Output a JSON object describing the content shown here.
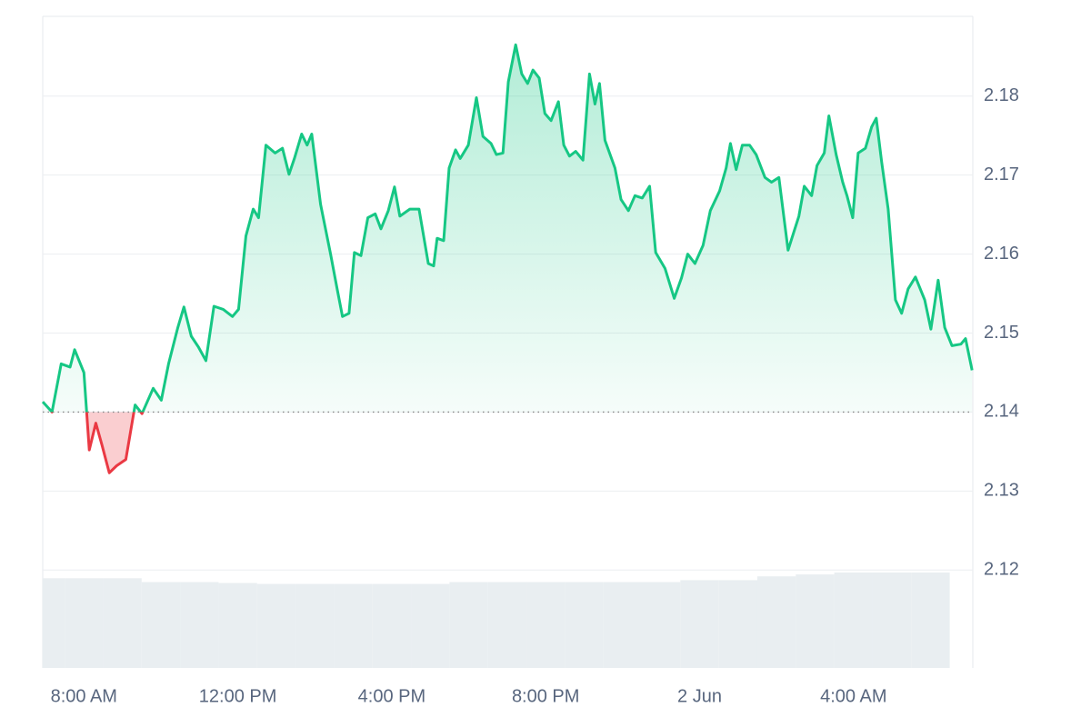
{
  "chart_data": {
    "type": "line",
    "x": [
      6.93,
      7.17,
      7.41,
      7.64,
      7.76,
      8.0,
      8.14,
      8.31,
      8.47,
      8.66,
      8.85,
      9.09,
      9.33,
      9.51,
      9.8,
      10.01,
      10.2,
      10.44,
      10.6,
      10.79,
      10.98,
      11.17,
      11.38,
      11.62,
      11.86,
      12.02,
      12.21,
      12.4,
      12.54,
      12.73,
      12.97,
      13.16,
      13.33,
      13.47,
      13.66,
      13.8,
      13.92,
      14.15,
      14.41,
      14.58,
      14.72,
      14.89,
      15.03,
      15.2,
      15.38,
      15.57,
      15.72,
      15.91,
      16.07,
      16.21,
      16.47,
      16.71,
      16.95,
      17.09,
      17.18,
      17.35,
      17.49,
      17.66,
      17.78,
      17.99,
      18.2,
      18.37,
      18.58,
      18.72,
      18.89,
      19.03,
      19.22,
      19.38,
      19.53,
      19.67,
      19.83,
      19.98,
      20.14,
      20.33,
      20.47,
      20.62,
      20.78,
      20.97,
      21.14,
      21.28,
      21.4,
      21.54,
      21.8,
      21.96,
      22.15,
      22.32,
      22.51,
      22.7,
      22.86,
      23.1,
      23.34,
      23.53,
      23.69,
      23.88,
      24.09,
      24.28,
      24.52,
      24.69,
      24.8,
      24.95,
      25.11,
      25.3,
      25.47,
      25.7,
      25.87,
      26.06,
      26.3,
      26.58,
      26.72,
      26.91,
      27.05,
      27.24,
      27.36,
      27.55,
      27.72,
      27.83,
      27.98,
      28.12,
      28.31,
      28.47,
      28.59,
      28.73,
      28.9,
      29.09,
      29.25,
      29.42,
      29.61,
      29.85,
      30.01,
      30.2,
      30.37,
      30.56,
      30.79,
      30.91,
      31.08
    ],
    "values": [
      2.1413,
      2.14,
      2.1461,
      2.1457,
      2.1479,
      2.145,
      2.1352,
      2.1386,
      2.1358,
      2.1323,
      2.1332,
      2.134,
      2.1409,
      2.1398,
      2.143,
      2.1415,
      2.1461,
      2.1507,
      2.1533,
      2.1496,
      2.1482,
      2.1465,
      2.1534,
      2.153,
      2.1521,
      2.153,
      2.1623,
      2.1657,
      2.1646,
      2.1738,
      2.1728,
      2.1734,
      2.1701,
      2.1721,
      2.1752,
      2.1738,
      2.1752,
      2.1663,
      2.16,
      2.1556,
      2.1521,
      2.1525,
      2.1602,
      2.1598,
      2.1646,
      2.1651,
      2.1632,
      2.1655,
      2.1685,
      2.1648,
      2.1657,
      2.1657,
      2.1588,
      2.1585,
      2.162,
      2.1617,
      2.1709,
      2.1732,
      2.1721,
      2.1738,
      2.1798,
      2.1749,
      2.174,
      2.1726,
      2.1728,
      2.1818,
      2.1865,
      2.1828,
      2.1816,
      2.1833,
      2.1823,
      2.1778,
      2.1769,
      2.1793,
      2.1738,
      2.1724,
      2.173,
      2.1719,
      2.1828,
      2.179,
      2.1816,
      2.1744,
      2.1709,
      2.1669,
      2.1655,
      2.1674,
      2.1671,
      2.1686,
      2.1602,
      2.1582,
      2.1544,
      2.157,
      2.16,
      2.1588,
      2.1611,
      2.1655,
      2.168,
      2.1709,
      2.174,
      2.1707,
      2.1738,
      2.1738,
      2.1726,
      2.1697,
      2.1691,
      2.1697,
      2.1605,
      2.1648,
      2.1686,
      2.1674,
      2.1712,
      2.1728,
      2.1775,
      2.1726,
      2.1691,
      2.1674,
      2.1646,
      2.1728,
      2.1734,
      2.1761,
      2.1772,
      2.1717,
      2.1657,
      2.1542,
      2.1525,
      2.1556,
      2.1571,
      2.1542,
      2.1505,
      2.1567,
      2.1507,
      2.1484,
      2.1486,
      2.1493,
      2.1453
    ],
    "baseline": 2.14,
    "up_color": "#16c784",
    "down_color": "#ea3943",
    "xlim": [
      6.93,
      31.1
    ],
    "xticks": [
      {
        "value": 8,
        "label": "8:00 AM"
      },
      {
        "value": 12,
        "label": "12:00 PM"
      },
      {
        "value": 16,
        "label": "4:00 PM"
      },
      {
        "value": 20,
        "label": "8:00 PM"
      },
      {
        "value": 24,
        "label": "2 Jun"
      },
      {
        "value": 28,
        "label": "4:00 AM"
      }
    ],
    "ylim": [
      2.1076,
      2.1901
    ],
    "yticks": [
      2.12,
      2.13,
      2.14,
      2.15,
      2.16,
      2.17,
      2.18
    ],
    "grid": true,
    "volume": {
      "color": "#e9eef1",
      "vlim": [
        0,
        100
      ],
      "x": [
        7,
        8,
        9,
        10,
        11,
        12,
        13,
        14,
        15,
        16,
        17,
        18,
        19,
        20,
        21,
        22,
        23,
        24,
        25,
        26,
        27,
        28,
        29,
        30
      ],
      "values": [
        94,
        94,
        94,
        90,
        90,
        89,
        88,
        88,
        88,
        88,
        88,
        90,
        90,
        90,
        90,
        90,
        90,
        92,
        92,
        96,
        98,
        100,
        100,
        100
      ]
    }
  }
}
